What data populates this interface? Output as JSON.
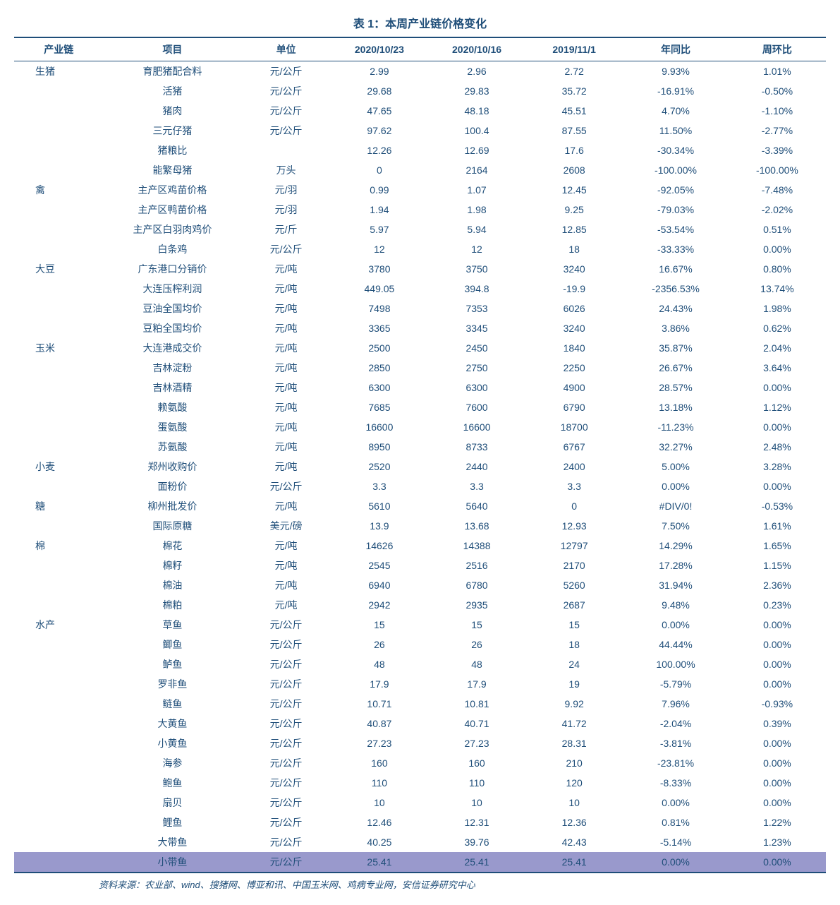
{
  "title": "表 1：本周产业链价格变化",
  "headers": [
    "产业链",
    "项目",
    "单位",
    "2020/10/23",
    "2020/10/16",
    "2019/11/1",
    "年同比",
    "周环比"
  ],
  "source": "资料来源：农业部、wind、搜猪网、博亚和讯、中国玉米网、鸡病专业网，安信证券研究中心",
  "rows": [
    {
      "cat": "生猪",
      "item": "育肥猪配合料",
      "unit": "元/公斤",
      "d1": "2.99",
      "d2": "2.96",
      "d3": "2.72",
      "yoy": "9.93%",
      "wow": "1.01%"
    },
    {
      "cat": "",
      "item": "活猪",
      "unit": "元/公斤",
      "d1": "29.68",
      "d2": "29.83",
      "d3": "35.72",
      "yoy": "-16.91%",
      "wow": "-0.50%"
    },
    {
      "cat": "",
      "item": "猪肉",
      "unit": "元/公斤",
      "d1": "47.65",
      "d2": "48.18",
      "d3": "45.51",
      "yoy": "4.70%",
      "wow": "-1.10%"
    },
    {
      "cat": "",
      "item": "三元仔猪",
      "unit": "元/公斤",
      "d1": "97.62",
      "d2": "100.4",
      "d3": "87.55",
      "yoy": "11.50%",
      "wow": "-2.77%"
    },
    {
      "cat": "",
      "item": "猪粮比",
      "unit": "",
      "d1": "12.26",
      "d2": "12.69",
      "d3": "17.6",
      "yoy": "-30.34%",
      "wow": "-3.39%"
    },
    {
      "cat": "",
      "item": "能繁母猪",
      "unit": "万头",
      "d1": "0",
      "d2": "2164",
      "d3": "2608",
      "yoy": "-100.00%",
      "wow": "-100.00%"
    },
    {
      "cat": "禽",
      "item": "主产区鸡苗价格",
      "unit": "元/羽",
      "d1": "0.99",
      "d2": "1.07",
      "d3": "12.45",
      "yoy": "-92.05%",
      "wow": "-7.48%"
    },
    {
      "cat": "",
      "item": "主产区鸭苗价格",
      "unit": "元/羽",
      "d1": "1.94",
      "d2": "1.98",
      "d3": "9.25",
      "yoy": "-79.03%",
      "wow": "-2.02%"
    },
    {
      "cat": "",
      "item": "主产区白羽肉鸡价",
      "unit": "元/斤",
      "d1": "5.97",
      "d2": "5.94",
      "d3": "12.85",
      "yoy": "-53.54%",
      "wow": "0.51%"
    },
    {
      "cat": "",
      "item": "白条鸡",
      "unit": "元/公斤",
      "d1": "12",
      "d2": "12",
      "d3": "18",
      "yoy": "-33.33%",
      "wow": "0.00%"
    },
    {
      "cat": "大豆",
      "item": "广东港口分销价",
      "unit": "元/吨",
      "d1": "3780",
      "d2": "3750",
      "d3": "3240",
      "yoy": "16.67%",
      "wow": "0.80%"
    },
    {
      "cat": "",
      "item": "大连压榨利润",
      "unit": "元/吨",
      "d1": "449.05",
      "d2": "394.8",
      "d3": "-19.9",
      "yoy": "-2356.53%",
      "wow": "13.74%"
    },
    {
      "cat": "",
      "item": "豆油全国均价",
      "unit": "元/吨",
      "d1": "7498",
      "d2": "7353",
      "d3": "6026",
      "yoy": "24.43%",
      "wow": "1.98%"
    },
    {
      "cat": "",
      "item": "豆粕全国均价",
      "unit": "元/吨",
      "d1": "3365",
      "d2": "3345",
      "d3": "3240",
      "yoy": "3.86%",
      "wow": "0.62%"
    },
    {
      "cat": "玉米",
      "item": "大连港成交价",
      "unit": "元/吨",
      "d1": "2500",
      "d2": "2450",
      "d3": "1840",
      "yoy": "35.87%",
      "wow": "2.04%"
    },
    {
      "cat": "",
      "item": "吉林淀粉",
      "unit": "元/吨",
      "d1": "2850",
      "d2": "2750",
      "d3": "2250",
      "yoy": "26.67%",
      "wow": "3.64%"
    },
    {
      "cat": "",
      "item": "吉林酒精",
      "unit": "元/吨",
      "d1": "6300",
      "d2": "6300",
      "d3": "4900",
      "yoy": "28.57%",
      "wow": "0.00%"
    },
    {
      "cat": "",
      "item": "赖氨酸",
      "unit": "元/吨",
      "d1": "7685",
      "d2": "7600",
      "d3": "6790",
      "yoy": "13.18%",
      "wow": "1.12%"
    },
    {
      "cat": "",
      "item": "蛋氨酸",
      "unit": "元/吨",
      "d1": "16600",
      "d2": "16600",
      "d3": "18700",
      "yoy": "-11.23%",
      "wow": "0.00%"
    },
    {
      "cat": "",
      "item": "苏氨酸",
      "unit": "元/吨",
      "d1": "8950",
      "d2": "8733",
      "d3": "6767",
      "yoy": "32.27%",
      "wow": "2.48%"
    },
    {
      "cat": "小麦",
      "item": "郑州收购价",
      "unit": "元/吨",
      "d1": "2520",
      "d2": "2440",
      "d3": "2400",
      "yoy": "5.00%",
      "wow": "3.28%"
    },
    {
      "cat": "",
      "item": "面粉价",
      "unit": "元/公斤",
      "d1": "3.3",
      "d2": "3.3",
      "d3": "3.3",
      "yoy": "0.00%",
      "wow": "0.00%"
    },
    {
      "cat": "糖",
      "item": "柳州批发价",
      "unit": "元/吨",
      "d1": "5610",
      "d2": "5640",
      "d3": "0",
      "yoy": "#DIV/0!",
      "wow": "-0.53%"
    },
    {
      "cat": "",
      "item": "国际原糖",
      "unit": "美元/磅",
      "d1": "13.9",
      "d2": "13.68",
      "d3": "12.93",
      "yoy": "7.50%",
      "wow": "1.61%"
    },
    {
      "cat": "棉",
      "item": "棉花",
      "unit": "元/吨",
      "d1": "14626",
      "d2": "14388",
      "d3": "12797",
      "yoy": "14.29%",
      "wow": "1.65%"
    },
    {
      "cat": "",
      "item": "棉籽",
      "unit": "元/吨",
      "d1": "2545",
      "d2": "2516",
      "d3": "2170",
      "yoy": "17.28%",
      "wow": "1.15%"
    },
    {
      "cat": "",
      "item": "棉油",
      "unit": "元/吨",
      "d1": "6940",
      "d2": "6780",
      "d3": "5260",
      "yoy": "31.94%",
      "wow": "2.36%"
    },
    {
      "cat": "",
      "item": "棉粕",
      "unit": "元/吨",
      "d1": "2942",
      "d2": "2935",
      "d3": "2687",
      "yoy": "9.48%",
      "wow": "0.23%"
    },
    {
      "cat": "水产",
      "item": "草鱼",
      "unit": "元/公斤",
      "d1": "15",
      "d2": "15",
      "d3": "15",
      "yoy": "0.00%",
      "wow": "0.00%"
    },
    {
      "cat": "",
      "item": "鲫鱼",
      "unit": "元/公斤",
      "d1": "26",
      "d2": "26",
      "d3": "18",
      "yoy": "44.44%",
      "wow": "0.00%"
    },
    {
      "cat": "",
      "item": "鲈鱼",
      "unit": "元/公斤",
      "d1": "48",
      "d2": "48",
      "d3": "24",
      "yoy": "100.00%",
      "wow": "0.00%"
    },
    {
      "cat": "",
      "item": "罗非鱼",
      "unit": "元/公斤",
      "d1": "17.9",
      "d2": "17.9",
      "d3": "19",
      "yoy": "-5.79%",
      "wow": "0.00%"
    },
    {
      "cat": "",
      "item": "鲢鱼",
      "unit": "元/公斤",
      "d1": "10.71",
      "d2": "10.81",
      "d3": "9.92",
      "yoy": "7.96%",
      "wow": "-0.93%"
    },
    {
      "cat": "",
      "item": "大黄鱼",
      "unit": "元/公斤",
      "d1": "40.87",
      "d2": "40.71",
      "d3": "41.72",
      "yoy": "-2.04%",
      "wow": "0.39%"
    },
    {
      "cat": "",
      "item": "小黄鱼",
      "unit": "元/公斤",
      "d1": "27.23",
      "d2": "27.23",
      "d3": "28.31",
      "yoy": "-3.81%",
      "wow": "0.00%"
    },
    {
      "cat": "",
      "item": "海参",
      "unit": "元/公斤",
      "d1": "160",
      "d2": "160",
      "d3": "210",
      "yoy": "-23.81%",
      "wow": "0.00%"
    },
    {
      "cat": "",
      "item": "鲍鱼",
      "unit": "元/公斤",
      "d1": "110",
      "d2": "110",
      "d3": "120",
      "yoy": "-8.33%",
      "wow": "0.00%"
    },
    {
      "cat": "",
      "item": "扇贝",
      "unit": "元/公斤",
      "d1": "10",
      "d2": "10",
      "d3": "10",
      "yoy": "0.00%",
      "wow": "0.00%"
    },
    {
      "cat": "",
      "item": "鲤鱼",
      "unit": "元/公斤",
      "d1": "12.46",
      "d2": "12.31",
      "d3": "12.36",
      "yoy": "0.81%",
      "wow": "1.22%"
    },
    {
      "cat": "",
      "item": "大带鱼",
      "unit": "元/公斤",
      "d1": "40.25",
      "d2": "39.76",
      "d3": "42.43",
      "yoy": "-5.14%",
      "wow": "1.23%"
    },
    {
      "cat": "",
      "item": "小带鱼",
      "unit": "元/公斤",
      "d1": "25.41",
      "d2": "25.41",
      "d3": "25.41",
      "yoy": "0.00%",
      "wow": "0.00%",
      "highlight": true
    }
  ],
  "colWidths": [
    "11%",
    "17%",
    "11%",
    "12%",
    "12%",
    "12%",
    "13%",
    "12%"
  ]
}
